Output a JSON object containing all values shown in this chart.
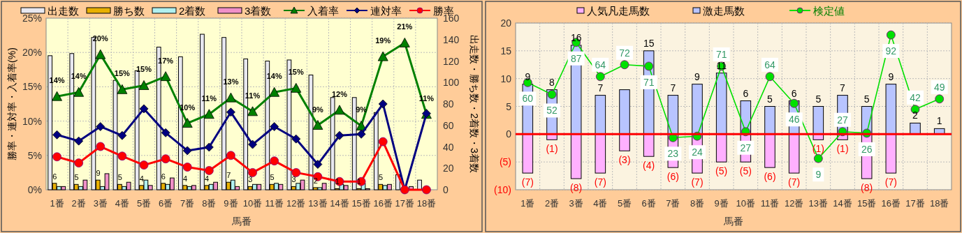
{
  "chart_data": [
    {
      "type": "bar",
      "xlabel": "馬番",
      "ylabel": "勝率・連対率・入着率(%)",
      "y2label": "出走数・勝ち数・2着数・3着数",
      "categories": [
        "1番",
        "2番",
        "3番",
        "4番",
        "5番",
        "6番",
        "7番",
        "8番",
        "9番",
        "10番",
        "11番",
        "12番",
        "13番",
        "14番",
        "15番",
        "16番",
        "17番",
        "18番"
      ],
      "ylim": [
        0,
        25
      ],
      "yticks": [
        {
          "value": 0,
          "label": "0%"
        },
        {
          "value": 5,
          "label": "5%"
        },
        {
          "value": 10,
          "label": "10%"
        },
        {
          "value": 15,
          "label": "15%"
        },
        {
          "value": 20,
          "label": "20%"
        },
        {
          "value": 25,
          "label": "25%"
        }
      ],
      "y2lim": [
        0,
        160
      ],
      "y2ticks": [
        0,
        20,
        40,
        60,
        80,
        100,
        120,
        140,
        160
      ],
      "grid": true,
      "legend": "top",
      "series": [
        {
          "name": "出走数",
          "color": "#e8e8f0",
          "axis": "y2",
          "values": [
            125,
            127,
            142,
            102,
            111,
            133,
            124,
            145,
            142,
            122,
            120,
            121,
            107,
            86,
            86,
            72,
            14,
            9
          ]
        },
        {
          "name": "勝ち数",
          "color": "#e8b000",
          "axis": "y2",
          "values": [
            6,
            5,
            9,
            5,
            4,
            6,
            4,
            4,
            7,
            3,
            5,
            3,
            2,
            1,
            1,
            5,
            0,
            0
          ],
          "value_labels": [
            "6",
            "5",
            "9",
            "5",
            "4",
            "6",
            "4",
            "4",
            "7",
            "3",
            "5",
            "3",
            "2",
            "1",
            "1",
            "5",
            null,
            null
          ]
        },
        {
          "name": "2着数",
          "color": "#b0f0f0",
          "axis": "y2",
          "values": [
            3,
            3,
            3,
            3,
            9,
            5,
            3,
            5,
            9,
            5,
            6,
            6,
            2,
            5,
            6,
            4,
            0,
            0
          ]
        },
        {
          "name": "3着数",
          "color": "#f090c8",
          "axis": "y2",
          "values": [
            3,
            9,
            15,
            7,
            4,
            11,
            4,
            7,
            3,
            5,
            5,
            9,
            6,
            4,
            1,
            5,
            3,
            0
          ]
        },
        {
          "name": "入着率",
          "type": "line",
          "color": "#008000",
          "marker": "triangle",
          "values": [
            13.6,
            14.2,
            19.7,
            14.6,
            15.2,
            16.5,
            9.7,
            11.0,
            13.4,
            11.4,
            14.2,
            14.8,
            9.4,
            11.6,
            9.3,
            19.4,
            21.4,
            11.0
          ],
          "value_labels": [
            "14%",
            "14%",
            "20%",
            "15%",
            "15%",
            "17%",
            "10%",
            "11%",
            "13%",
            "11%",
            "14%",
            "15%",
            "9%",
            "12%",
            "9%",
            "19%",
            "21%",
            "11%"
          ]
        },
        {
          "name": "連対率",
          "type": "line",
          "color": "#000080",
          "marker": "diamond",
          "values": [
            8.0,
            7.1,
            9.2,
            7.9,
            11.8,
            8.3,
            5.7,
            6.2,
            11.3,
            6.6,
            9.2,
            7.4,
            3.7,
            7.9,
            8.1,
            12.5,
            0,
            11.1
          ]
        },
        {
          "name": "勝率",
          "type": "line",
          "color": "#ff0000",
          "marker": "circle",
          "values": [
            4.8,
            3.9,
            6.3,
            4.9,
            3.6,
            4.5,
            3.3,
            2.8,
            5.0,
            2.5,
            4.2,
            2.5,
            1.9,
            1.2,
            1.2,
            7.0,
            0,
            0
          ]
        }
      ]
    },
    {
      "type": "bar",
      "xlabel": "馬番",
      "categories": [
        "1番",
        "2番",
        "3番",
        "4番",
        "5番",
        "6番",
        "7番",
        "8番",
        "9番",
        "10番",
        "11番",
        "12番",
        "13番",
        "14番",
        "15番",
        "16番",
        "17番",
        "18番"
      ],
      "ylim": [
        -10,
        20
      ],
      "yticks": [
        {
          "value": -10,
          "label": "(10)"
        },
        {
          "value": -5,
          "label": "(5)"
        },
        0,
        5,
        10,
        15,
        20
      ],
      "y2lim": [
        -12,
        100
      ],
      "stacked": true,
      "grid": true,
      "legend": "top",
      "ref_lines": [
        {
          "axis": "y",
          "value": 0,
          "color": "#ff0000"
        }
      ],
      "series": [
        {
          "name": "人気凡走馬数",
          "color": "#ffb0ff",
          "values": [
            -7,
            -1,
            -8,
            -7,
            -3,
            -4,
            -6,
            -7,
            -5,
            -5,
            -6,
            -7,
            -1,
            -1,
            -8,
            -7,
            0,
            0
          ],
          "value_labels": [
            "(7)",
            "(1)",
            "(8)",
            "(7)",
            "(3)",
            "(4)",
            "(6)",
            "(7)",
            "(5)",
            "(5)",
            "(6)",
            "(7)",
            "(1)",
            "(1)",
            "(8)",
            "(7)",
            null,
            null
          ]
        },
        {
          "name": "激走馬数",
          "color": "#b8c4ff",
          "values": [
            9,
            8,
            16,
            7,
            8,
            15,
            7,
            9,
            11,
            6,
            5,
            6,
            5,
            7,
            5,
            9,
            2,
            1
          ],
          "value_labels": [
            "9",
            "8",
            "16",
            "7",
            null,
            "15",
            "7",
            "9",
            "11",
            "6",
            "5",
            "6",
            "5",
            "7",
            "5",
            "9",
            "2",
            "1"
          ]
        },
        {
          "name": "検定値",
          "type": "line",
          "color": "#00e000",
          "marker": "circle",
          "axis": "y2",
          "values": [
            60,
            52,
            87,
            64,
            72,
            71,
            23,
            24,
            71,
            27,
            64,
            46,
            9,
            27,
            26,
            92,
            42,
            49
          ],
          "value_labels": [
            "60",
            "52",
            "87",
            "64",
            "72",
            "71",
            "23",
            "24",
            "71",
            "27",
            "64",
            "46",
            "9",
            "27",
            "26",
            "92",
            "42",
            "49"
          ]
        }
      ]
    }
  ]
}
